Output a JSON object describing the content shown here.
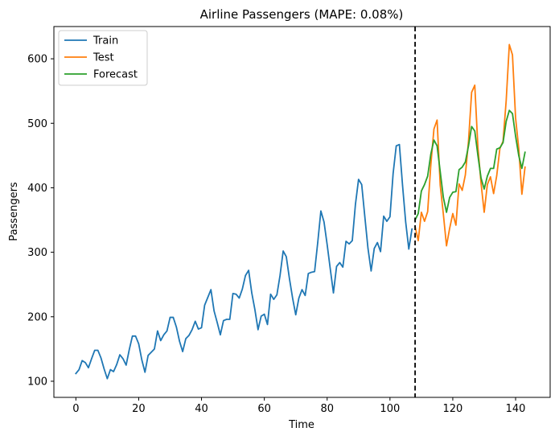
{
  "chart_data": {
    "type": "line",
    "title": "Airline Passengers (MAPE: 0.08%)",
    "xlabel": "Time",
    "ylabel": "Passengers",
    "xlim": [
      -7,
      151
    ],
    "ylim": [
      75,
      650
    ],
    "x_ticks": [
      0,
      20,
      40,
      60,
      80,
      100,
      120,
      140
    ],
    "y_ticks": [
      100,
      200,
      300,
      400,
      500,
      600
    ],
    "grid": false,
    "legend_position": "upper-left",
    "split_line_x": 108,
    "series": [
      {
        "name": "Train",
        "color": "#1f77b4",
        "x_start": 0,
        "values": [
          112,
          118,
          132,
          129,
          121,
          135,
          148,
          148,
          136,
          119,
          104,
          118,
          115,
          126,
          141,
          135,
          125,
          149,
          170,
          170,
          158,
          133,
          114,
          140,
          145,
          150,
          178,
          163,
          172,
          178,
          199,
          199,
          184,
          162,
          146,
          166,
          171,
          180,
          193,
          181,
          183,
          218,
          230,
          242,
          209,
          191,
          172,
          194,
          196,
          196,
          236,
          235,
          229,
          243,
          264,
          272,
          237,
          211,
          180,
          201,
          204,
          188,
          235,
          227,
          234,
          264,
          302,
          293,
          259,
          229,
          203,
          229,
          242,
          233,
          267,
          269,
          270,
          315,
          364,
          347,
          312,
          274,
          237,
          278,
          284,
          277,
          317,
          313,
          318,
          374,
          413,
          405,
          355,
          306,
          271,
          306,
          315,
          301,
          356,
          348,
          355,
          422,
          465,
          467,
          404,
          347,
          305,
          336
        ]
      },
      {
        "name": "Test",
        "color": "#ff7f0e",
        "x_start": 108,
        "values": [
          340,
          318,
          362,
          348,
          363,
          435,
          491,
          505,
          404,
          359,
          310,
          337,
          360,
          342,
          406,
          396,
          420,
          472,
          548,
          559,
          463,
          407,
          362,
          405,
          417,
          391,
          419,
          461,
          472,
          535,
          622,
          606,
          508,
          461,
          390,
          432
        ]
      },
      {
        "name": "Forecast",
        "color": "#2ca02c",
        "x_start": 108,
        "values": [
          350,
          360,
          395,
          405,
          418,
          452,
          474,
          465,
          425,
          385,
          362,
          385,
          393,
          394,
          428,
          432,
          440,
          465,
          495,
          488,
          450,
          415,
          398,
          418,
          430,
          430,
          460,
          462,
          470,
          503,
          520,
          515,
          480,
          450,
          430,
          455
        ]
      }
    ]
  }
}
